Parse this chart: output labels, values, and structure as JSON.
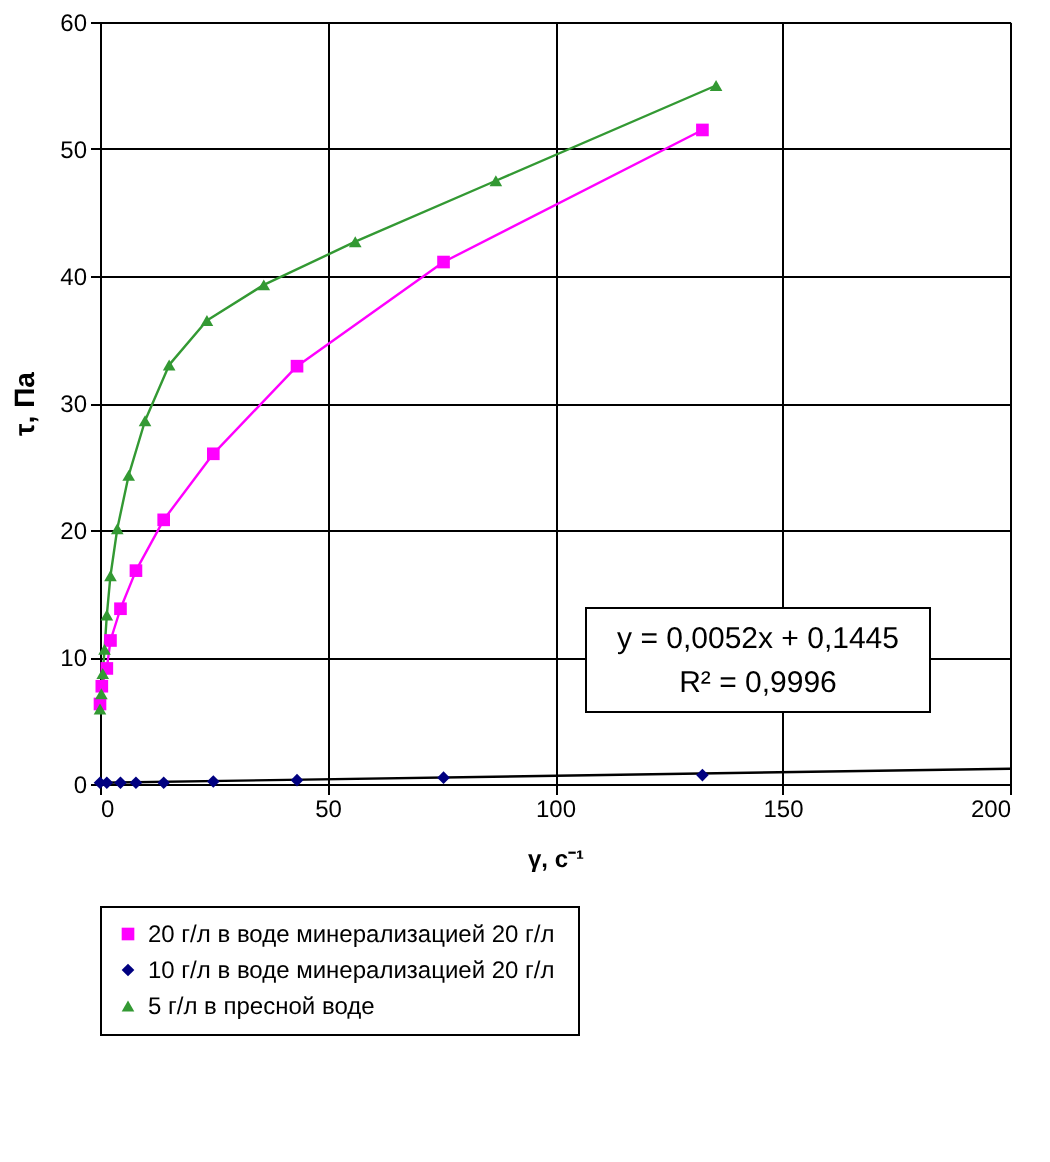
{
  "chart_data": {
    "type": "line",
    "xlabel": "γ, с⁻¹",
    "ylabel": "τ, Па",
    "xlim": [
      0,
      200
    ],
    "ylim": [
      0,
      60
    ],
    "xticks": [
      0,
      50,
      100,
      150,
      200
    ],
    "yticks": [
      0,
      10,
      20,
      30,
      40,
      50,
      60
    ],
    "grid": true,
    "legend": "bottom",
    "series": [
      {
        "name": "20 г/л  в воде минерализацией 20 г/л",
        "color": "#ff00ff",
        "marker": "square",
        "x": [
          0,
          0.4,
          1.5,
          2.3,
          4.5,
          7.9,
          14,
          24.9,
          43.3,
          75.5,
          132.4
        ],
        "values": [
          6.3,
          7.7,
          9.1,
          11.3,
          13.8,
          16.8,
          20.8,
          26.0,
          32.9,
          41.1,
          51.5
        ]
      },
      {
        "name": "10 г/л  в воде минерализацией 20 г/л",
        "color": "#000080",
        "marker": "diamond",
        "type": "scatter",
        "x": [
          0,
          1.5,
          4.5,
          7.9,
          14,
          24.9,
          43.3,
          75.5,
          132.4
        ],
        "values": [
          0.1,
          0.1,
          0.1,
          0.1,
          0.1,
          0.2,
          0.3,
          0.5,
          0.7
        ]
      },
      {
        "name": "5 г/л в пресной воде",
        "color": "#339933",
        "marker": "triangle",
        "x": [
          0,
          0.3,
          0.6,
          1,
          1.5,
          2.3,
          3.8,
          6.3,
          9.9,
          15.2,
          23.5,
          36,
          56.1,
          87,
          135.4
        ],
        "values": [
          5.9,
          7.1,
          8.7,
          10.6,
          13.3,
          16.4,
          20.1,
          24.3,
          28.6,
          33.0,
          36.5,
          39.3,
          42.7,
          47.5,
          55.0
        ]
      },
      {
        "color": "#000000",
        "marker": "none",
        "x": [
          0,
          200
        ],
        "values": [
          0.1,
          1.2
        ]
      }
    ],
    "annotations": [
      "y = 0,0052x + 0,1445",
      "R² = 0,9996"
    ]
  }
}
